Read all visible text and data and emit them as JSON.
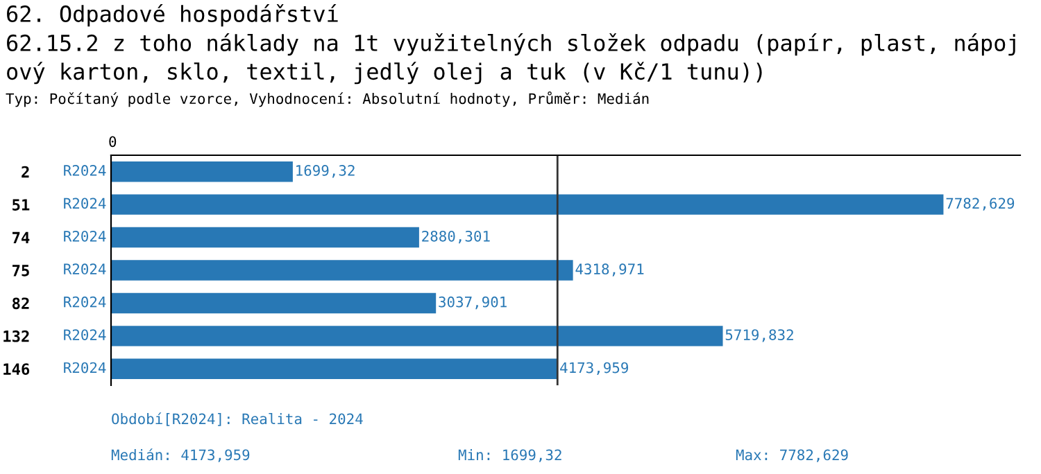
{
  "chart_data": {
    "type": "bar",
    "orientation": "horizontal",
    "title": "62. Odpadové hospodářství",
    "subtitle": "62.15.2 z toho náklady na 1t využitelných složek odpadu (papír, plast, nápojový karton, sklo, textil, jedlý olej a tuk (v Kč/1 tunu))",
    "categories": [
      "2",
      "51",
      "74",
      "75",
      "82",
      "132",
      "146"
    ],
    "series": [
      {
        "name": "R2024",
        "color": "#2878b5",
        "values": [
          1699.32,
          7782.629,
          2880.301,
          4318.971,
          3037.901,
          5719.832,
          4173.959
        ],
        "value_labels": [
          "1699,32",
          "7782,629",
          "2880,301",
          "4318,971",
          "3037,901",
          "5719,832",
          "4173,959"
        ]
      }
    ],
    "xlim": [
      0,
      8500
    ],
    "ref_lines": [
      {
        "axis": "x",
        "value": 4173.959,
        "color": "#333333"
      }
    ],
    "annotations": [
      "0",
      "Typ: Počítaný podle vzorce, Vyhodnocení: Absolutní hodnoty, Průměr: Medián",
      "Období[R2024]: Realita - 2024",
      "Medián: 4173,959",
      "Min: 1699,32",
      "Max: 7782,629"
    ],
    "grid": false,
    "legend": false
  }
}
